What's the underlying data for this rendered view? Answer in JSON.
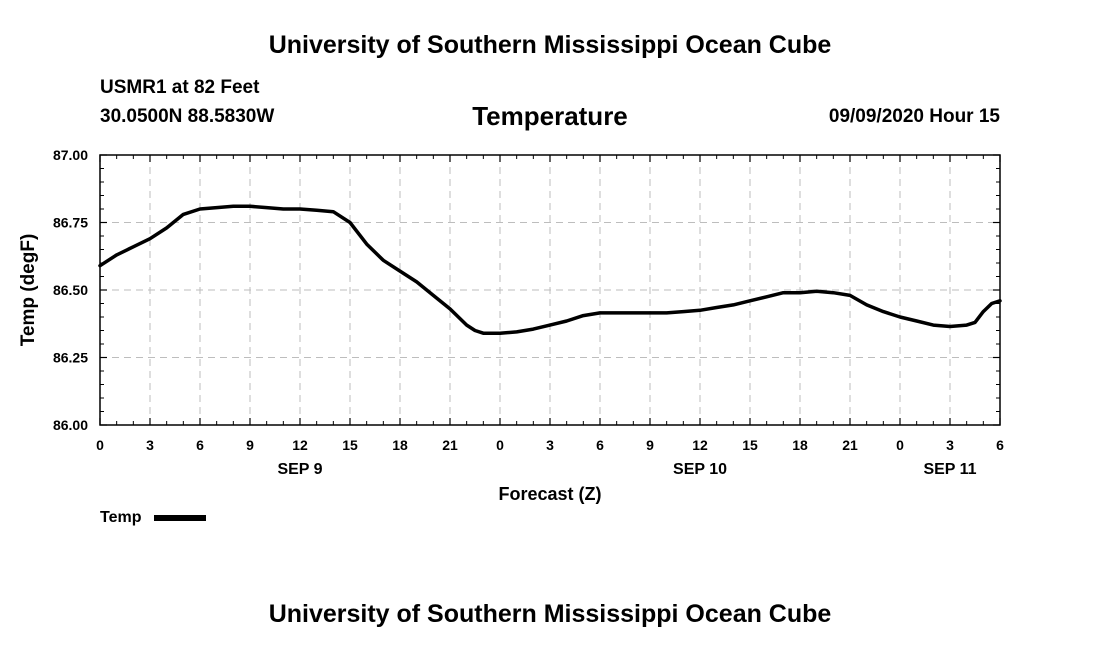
{
  "header": {
    "title_top": "University of Southern Mississippi Ocean Cube",
    "title_bottom": "University of Southern Mississippi Ocean Cube",
    "station": "USMR1 at 82 Feet",
    "coords": "30.0500N 88.5830W",
    "variable": "Temperature",
    "datetime": "09/09/2020 Hour 15"
  },
  "legend": {
    "label": "Temp"
  },
  "chart_data": {
    "type": "line",
    "title": "Temperature",
    "xlabel": "Forecast (Z)",
    "ylabel": "Temp (degF)",
    "ylim": [
      86.0,
      87.0
    ],
    "yticks": [
      "86.00",
      "86.25",
      "86.50",
      "86.75",
      "87.00"
    ],
    "xlim": [
      0,
      54
    ],
    "xticks": [
      {
        "hour": 0,
        "label": "0"
      },
      {
        "hour": 3,
        "label": "3"
      },
      {
        "hour": 6,
        "label": "6"
      },
      {
        "hour": 9,
        "label": "9"
      },
      {
        "hour": 12,
        "label": "12"
      },
      {
        "hour": 15,
        "label": "15"
      },
      {
        "hour": 18,
        "label": "18"
      },
      {
        "hour": 21,
        "label": "21"
      },
      {
        "hour": 24,
        "label": "0"
      },
      {
        "hour": 27,
        "label": "3"
      },
      {
        "hour": 30,
        "label": "6"
      },
      {
        "hour": 33,
        "label": "9"
      },
      {
        "hour": 36,
        "label": "12"
      },
      {
        "hour": 39,
        "label": "15"
      },
      {
        "hour": 42,
        "label": "18"
      },
      {
        "hour": 45,
        "label": "21"
      },
      {
        "hour": 48,
        "label": "0"
      },
      {
        "hour": 51,
        "label": "3"
      },
      {
        "hour": 54,
        "label": "6"
      }
    ],
    "date_labels": [
      {
        "hour": 12,
        "label": "SEP 9"
      },
      {
        "hour": 36,
        "label": "SEP 10"
      },
      {
        "hour": 51,
        "label": "SEP 11"
      }
    ],
    "grid": true,
    "series": [
      {
        "name": "Temp",
        "x": [
          0,
          1,
          2,
          3,
          4,
          5,
          6,
          7,
          8,
          9,
          10,
          11,
          12,
          13,
          14,
          15,
          16,
          17,
          18,
          19,
          20,
          21,
          22,
          22.5,
          23,
          24,
          25,
          26,
          27,
          28,
          29,
          30,
          31,
          32,
          33,
          34,
          35,
          36,
          37,
          38,
          39,
          40,
          41,
          42,
          43,
          44,
          45,
          46,
          47,
          48,
          49,
          50,
          51,
          52,
          52.5,
          53,
          53.5,
          54
        ],
        "values": [
          86.59,
          86.63,
          86.66,
          86.69,
          86.73,
          86.78,
          86.8,
          86.805,
          86.81,
          86.81,
          86.805,
          86.8,
          86.8,
          86.795,
          86.79,
          86.75,
          86.67,
          86.61,
          86.57,
          86.53,
          86.48,
          86.43,
          86.37,
          86.35,
          86.34,
          86.34,
          86.345,
          86.355,
          86.37,
          86.385,
          86.405,
          86.415,
          86.415,
          86.415,
          86.415,
          86.415,
          86.42,
          86.425,
          86.435,
          86.445,
          86.46,
          86.475,
          86.49,
          86.49,
          86.495,
          86.49,
          86.48,
          86.445,
          86.42,
          86.4,
          86.385,
          86.37,
          86.365,
          86.37,
          86.38,
          86.42,
          86.45,
          86.46
        ]
      }
    ]
  }
}
